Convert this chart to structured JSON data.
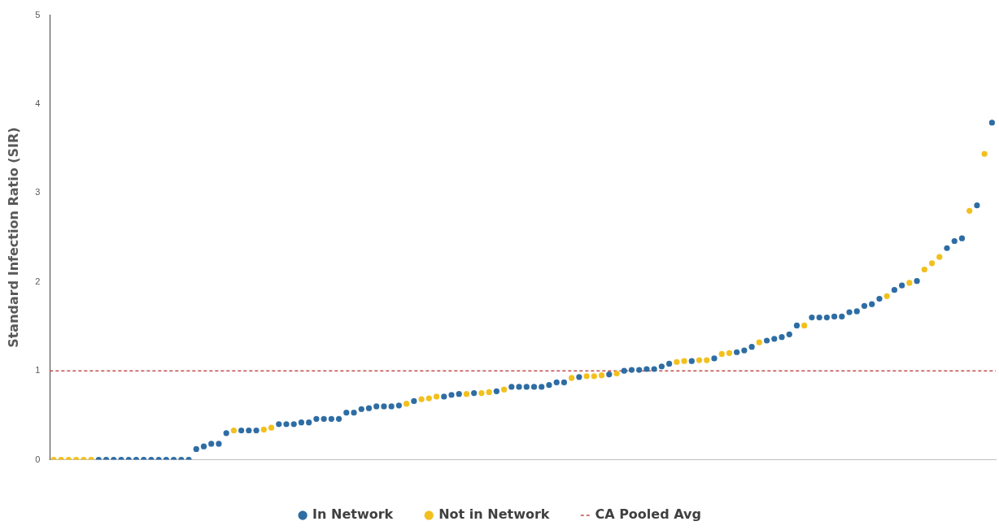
{
  "chart_data": {
    "type": "scatter",
    "ylabel": "Standard Infection Ratio (SIR)",
    "categories": [
      null,
      null,
      null,
      null,
      null,
      null,
      null,
      null,
      null,
      null,
      null,
      null,
      null,
      null,
      null,
      null,
      null,
      null,
      null,
      null,
      null,
      null,
      null,
      null,
      null,
      null,
      null,
      null,
      null,
      null,
      null,
      null,
      null,
      null,
      null,
      null,
      null,
      null,
      null,
      null,
      null,
      null,
      null,
      null,
      null,
      null,
      null,
      null,
      null,
      null,
      null,
      null,
      null,
      null,
      null,
      null,
      null,
      null,
      null,
      null,
      null,
      null,
      null,
      null,
      null,
      null,
      null,
      null,
      null,
      null,
      null,
      null,
      null,
      null,
      null,
      null,
      null,
      null,
      null,
      null,
      null,
      null,
      null,
      null,
      null,
      null,
      null,
      null,
      null,
      null,
      null,
      null,
      null,
      null,
      null,
      null,
      null,
      null,
      null,
      null,
      null,
      null,
      null,
      null,
      null,
      null,
      null,
      null,
      null,
      null,
      null,
      null,
      null,
      null,
      null,
      null,
      null,
      null,
      null,
      null,
      null,
      null,
      null,
      null,
      null,
      null
    ],
    "series": [
      {
        "name": "In Network",
        "color": "#2e6da4",
        "values": [
          null,
          null,
          null,
          null,
          null,
          null,
          0,
          0,
          0,
          0,
          0,
          0,
          0,
          0,
          0,
          0,
          0,
          0,
          0,
          0.12,
          0.15,
          0.18,
          0.18,
          0.3,
          null,
          0.33,
          0.33,
          0.33,
          null,
          null,
          0.4,
          0.4,
          0.4,
          0.42,
          0.42,
          0.46,
          0.46,
          0.46,
          0.46,
          0.53,
          0.53,
          0.57,
          0.58,
          0.6,
          0.6,
          0.6,
          0.61,
          null,
          0.66,
          null,
          null,
          null,
          0.71,
          0.73,
          0.74,
          null,
          0.75,
          null,
          null,
          0.77,
          null,
          0.82,
          0.82,
          0.82,
          0.82,
          0.82,
          0.84,
          0.87,
          0.87,
          null,
          0.93,
          null,
          null,
          null,
          0.96,
          null,
          1,
          1.01,
          1.01,
          1.02,
          1.02,
          1.05,
          1.08,
          null,
          null,
          1.11,
          null,
          null,
          1.14,
          null,
          null,
          1.21,
          1.23,
          1.27,
          null,
          1.34,
          1.36,
          1.38,
          1.41,
          1.51,
          null,
          1.6,
          1.6,
          1.6,
          1.61,
          1.61,
          1.66,
          1.67,
          1.73,
          1.75,
          1.81,
          null,
          1.91,
          1.96,
          null,
          2.01,
          null,
          null,
          null,
          2.38,
          2.46,
          2.49,
          null,
          2.86,
          null,
          3.79
        ]
      },
      {
        "name": "Not in Network",
        "color": "#f2c01e",
        "values": [
          0,
          0,
          0,
          0,
          0,
          0,
          null,
          null,
          null,
          null,
          null,
          null,
          null,
          null,
          null,
          null,
          null,
          null,
          null,
          null,
          null,
          null,
          null,
          null,
          0.33,
          null,
          null,
          null,
          0.34,
          0.36,
          null,
          null,
          null,
          null,
          null,
          null,
          null,
          null,
          null,
          null,
          null,
          null,
          null,
          null,
          null,
          null,
          null,
          0.63,
          null,
          0.68,
          0.69,
          0.71,
          null,
          null,
          null,
          0.74,
          null,
          0.75,
          0.76,
          null,
          0.79,
          null,
          null,
          null,
          null,
          null,
          null,
          null,
          null,
          0.92,
          null,
          0.94,
          0.94,
          0.95,
          null,
          0.97,
          null,
          null,
          null,
          null,
          null,
          null,
          null,
          1.1,
          1.11,
          null,
          1.12,
          1.12,
          null,
          1.19,
          1.2,
          null,
          null,
          null,
          1.32,
          null,
          null,
          null,
          null,
          null,
          1.51,
          null,
          null,
          null,
          null,
          null,
          null,
          null,
          null,
          null,
          null,
          1.84,
          null,
          null,
          1.99,
          null,
          2.14,
          2.21,
          2.28,
          null,
          null,
          null,
          2.8,
          null,
          3.44,
          null
        ]
      }
    ],
    "ref_lines": [
      {
        "axis": "y",
        "value": 1,
        "label": "CA Pooled Avg",
        "color": "#c0504d",
        "line_style": "dashed"
      }
    ],
    "ylim": [
      0,
      5
    ],
    "yticks": [
      0,
      1,
      2,
      3,
      4,
      5
    ],
    "grid": false,
    "legend": "bottom",
    "marker": "circle"
  }
}
